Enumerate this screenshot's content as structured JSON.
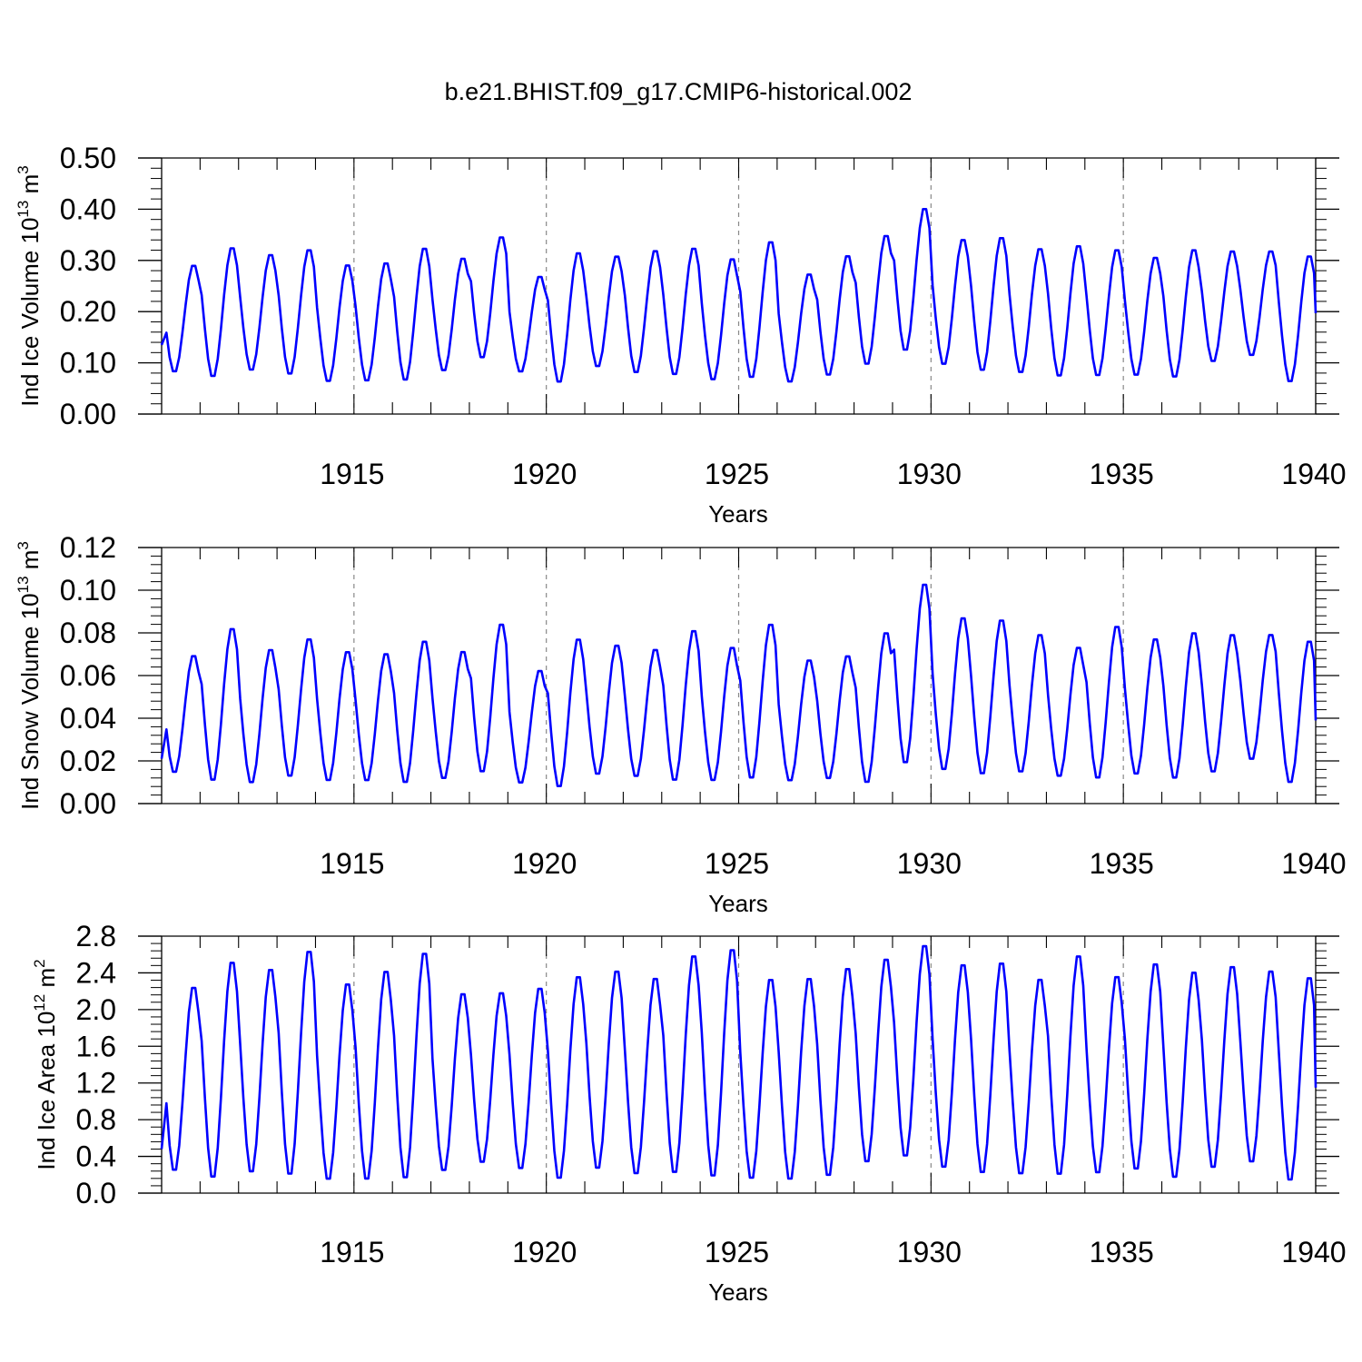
{
  "title": "b.e21.BHIST.f09_g17.CMIP6-historical.002",
  "colors": {
    "series": "#0000ff",
    "axis": "#000000",
    "grid": "#888888"
  },
  "chart_data": [
    {
      "type": "line",
      "name": "ice-volume",
      "ylabel": "Ind Ice Volume 10",
      "ylabel_exp": "13",
      "ylabel_unit": " m",
      "ylabel_unit_exp": "3",
      "xlabel": "Years",
      "xlim": [
        1910.0,
        1940.0
      ],
      "ylim": [
        0.0,
        0.5
      ],
      "yticks": [
        0.0,
        0.1,
        0.2,
        0.3,
        0.4,
        0.5
      ],
      "yticklabels": [
        "0.00",
        "0.10",
        "0.20",
        "0.30",
        "0.40",
        "0.50"
      ],
      "xticks": [
        1915,
        1920,
        1925,
        1930,
        1935,
        1940
      ],
      "xticklabels": [
        "1915",
        "1920",
        "1925",
        "1930",
        "1935",
        "1940"
      ],
      "gridlines_x": [
        1915,
        1920,
        1925,
        1930,
        1935
      ],
      "series": [
        {
          "name": "Ind Ice Volume",
          "annual_max": [
            0.293,
            0.328,
            0.314,
            0.324,
            0.294,
            0.298,
            0.327,
            0.307,
            0.349,
            0.271,
            0.318,
            0.311,
            0.322,
            0.327,
            0.306,
            0.34,
            0.276,
            0.312,
            0.352,
            0.405,
            0.344,
            0.348,
            0.326,
            0.332,
            0.324,
            0.309,
            0.324,
            0.321,
            0.321,
            0.312
          ],
          "annual_min": [
            0.08,
            0.07,
            0.083,
            0.075,
            0.061,
            0.062,
            0.063,
            0.082,
            0.107,
            0.08,
            0.059,
            0.09,
            0.078,
            0.074,
            0.064,
            0.068,
            0.06,
            0.073,
            0.094,
            0.121,
            0.094,
            0.082,
            0.078,
            0.071,
            0.072,
            0.073,
            0.069,
            0.1,
            0.112,
            0.06
          ],
          "first_value": 0.135,
          "last_value": 0.197
        }
      ]
    },
    {
      "type": "line",
      "name": "snow-volume",
      "ylabel": "Ind Snow Volume 10",
      "ylabel_exp": "13",
      "ylabel_unit": " m",
      "ylabel_unit_exp": "3",
      "xlabel": "Years",
      "xlim": [
        1910.0,
        1940.0
      ],
      "ylim": [
        0.0,
        0.12
      ],
      "yticks": [
        0.0,
        0.02,
        0.04,
        0.06,
        0.08,
        0.1,
        0.12
      ],
      "yticklabels": [
        "0.00",
        "0.02",
        "0.04",
        "0.06",
        "0.08",
        "0.10",
        "0.12"
      ],
      "xticks": [
        1915,
        1920,
        1925,
        1930,
        1935,
        1940
      ],
      "xticklabels": [
        "1915",
        "1920",
        "1925",
        "1930",
        "1935",
        "1940"
      ],
      "gridlines_x": [
        1915,
        1920,
        1925,
        1930,
        1935
      ],
      "series": [
        {
          "name": "Ind Snow Volume",
          "annual_max": [
            0.07,
            0.083,
            0.073,
            0.078,
            0.072,
            0.071,
            0.077,
            0.072,
            0.085,
            0.063,
            0.078,
            0.075,
            0.073,
            0.082,
            0.074,
            0.085,
            0.068,
            0.07,
            0.081,
            0.104,
            0.088,
            0.087,
            0.08,
            0.074,
            0.084,
            0.078,
            0.081,
            0.08,
            0.08,
            0.077
          ],
          "annual_min": [
            0.014,
            0.01,
            0.009,
            0.012,
            0.01,
            0.01,
            0.009,
            0.011,
            0.014,
            0.009,
            0.007,
            0.013,
            0.012,
            0.01,
            0.01,
            0.011,
            0.01,
            0.011,
            0.009,
            0.018,
            0.015,
            0.013,
            0.014,
            0.012,
            0.011,
            0.013,
            0.011,
            0.014,
            0.02,
            0.009
          ],
          "first_value": 0.021,
          "last_value": 0.039
        }
      ]
    },
    {
      "type": "line",
      "name": "ice-area",
      "ylabel": "Ind Ice Area 10",
      "ylabel_exp": "12",
      "ylabel_unit": " m",
      "ylabel_unit_exp": "2",
      "xlabel": "Years",
      "xlim": [
        1910.0,
        1940.0
      ],
      "ylim": [
        0.0,
        2.8
      ],
      "yticks": [
        0.0,
        0.4,
        0.8,
        1.2,
        1.6,
        2.0,
        2.4,
        2.8
      ],
      "yticklabels": [
        "0.0",
        "0.4",
        "0.8",
        "1.2",
        "1.6",
        "2.0",
        "2.4",
        "2.8"
      ],
      "xticks": [
        1915,
        1920,
        1925,
        1930,
        1935,
        1940
      ],
      "xticklabels": [
        "1915",
        "1920",
        "1925",
        "1930",
        "1935",
        "1940"
      ],
      "gridlines_x": [
        1915,
        1920,
        1925,
        1930,
        1935
      ],
      "series": [
        {
          "name": "Ind Ice Area",
          "annual_max": [
            2.27,
            2.55,
            2.47,
            2.67,
            2.31,
            2.45,
            2.65,
            2.2,
            2.21,
            2.26,
            2.39,
            2.45,
            2.37,
            2.62,
            2.69,
            2.36,
            2.37,
            2.48,
            2.58,
            2.73,
            2.52,
            2.54,
            2.36,
            2.62,
            2.39,
            2.53,
            2.44,
            2.5,
            2.45,
            2.38
          ],
          "annual_min": [
            0.22,
            0.14,
            0.2,
            0.17,
            0.12,
            0.12,
            0.13,
            0.22,
            0.31,
            0.24,
            0.13,
            0.24,
            0.18,
            0.19,
            0.15,
            0.13,
            0.12,
            0.16,
            0.31,
            0.37,
            0.25,
            0.19,
            0.18,
            0.17,
            0.19,
            0.23,
            0.14,
            0.25,
            0.31,
            0.11
          ],
          "first_value": 0.48,
          "last_value": 1.15
        }
      ]
    }
  ]
}
